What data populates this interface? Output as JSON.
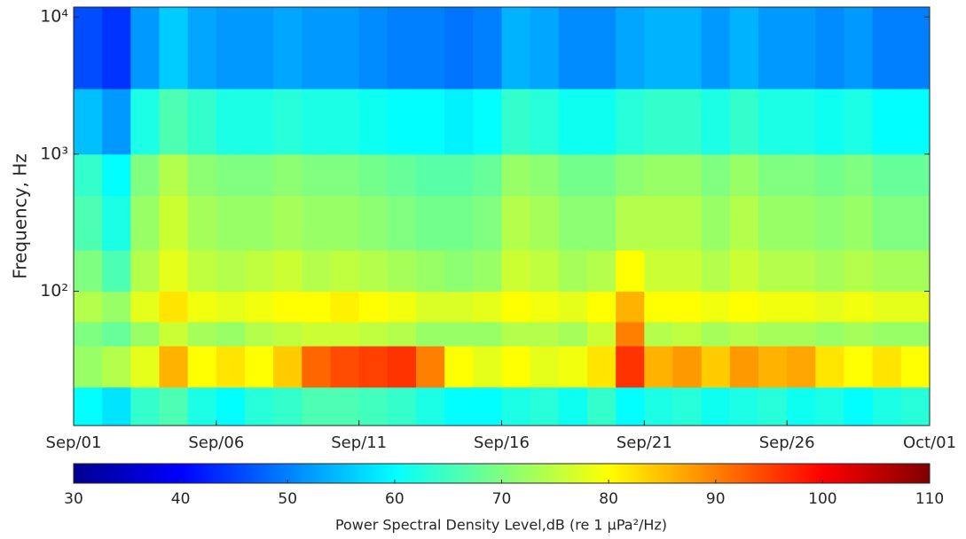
{
  "chart_data": {
    "type": "heatmap",
    "y_label": "Frequency, Hz",
    "colorbar_label": "Power Spectral Density Level,dB (re 1 μPa²/Hz)",
    "colormap": "jet",
    "y_log": true,
    "x": [
      0,
      1,
      2,
      3,
      4,
      5,
      6,
      7,
      8,
      9,
      10,
      11,
      12,
      13,
      14,
      15,
      16,
      17,
      18,
      19,
      20,
      21,
      22,
      23,
      24,
      25,
      26,
      27,
      28,
      29
    ],
    "xlim": [
      0,
      30
    ],
    "xticks": [
      {
        "value": 0,
        "label": "Sep/01"
      },
      {
        "value": 5,
        "label": "Sep/06"
      },
      {
        "value": 10,
        "label": "Sep/11"
      },
      {
        "value": 15,
        "label": "Sep/16"
      },
      {
        "value": 20,
        "label": "Sep/21"
      },
      {
        "value": 25,
        "label": "Sep/26"
      },
      {
        "value": 30,
        "label": "Oct/01"
      }
    ],
    "ybins": [
      10,
      20,
      40,
      60,
      100,
      200,
      500,
      1000,
      3000,
      12000
    ],
    "ylim": [
      10.5,
      11800
    ],
    "yticks": [
      {
        "value": 100,
        "label": "10²"
      },
      {
        "value": 1000,
        "label": "10³"
      },
      {
        "value": 10000,
        "label": "10⁴"
      }
    ],
    "clim": [
      30,
      110
    ],
    "cticks": [
      30,
      40,
      50,
      60,
      70,
      80,
      90,
      100,
      110
    ],
    "values": [
      [
        60,
        58,
        64,
        66,
        62,
        60,
        63,
        64,
        66,
        66,
        65,
        64,
        62,
        60,
        60,
        62,
        63,
        61,
        64,
        60,
        62,
        63,
        61,
        62,
        63,
        61,
        62,
        60,
        62,
        63
      ],
      [
        72,
        74,
        78,
        86,
        80,
        82,
        80,
        84,
        92,
        94,
        95,
        96,
        90,
        80,
        78,
        80,
        78,
        79,
        82,
        96,
        86,
        88,
        84,
        88,
        86,
        87,
        82,
        80,
        82,
        80
      ],
      [
        70,
        68,
        72,
        76,
        73,
        72,
        74,
        75,
        76,
        76,
        75,
        74,
        72,
        72,
        72,
        74,
        74,
        73,
        76,
        90,
        74,
        75,
        73,
        74,
        73,
        73,
        72,
        73,
        72,
        72
      ],
      [
        74,
        72,
        78,
        82,
        79,
        78,
        79,
        80,
        80,
        81,
        80,
        79,
        77,
        77,
        78,
        80,
        79,
        78,
        80,
        86,
        80,
        80,
        79,
        80,
        79,
        79,
        78,
        79,
        78,
        78
      ],
      [
        70,
        66,
        74,
        78,
        75,
        74,
        75,
        76,
        74,
        75,
        74,
        73,
        72,
        71,
        72,
        76,
        75,
        73,
        74,
        80,
        76,
        76,
        74,
        76,
        74,
        74,
        73,
        74,
        73,
        73
      ],
      [
        66,
        62,
        72,
        76,
        73,
        72,
        72,
        73,
        72,
        72,
        71,
        70,
        69,
        69,
        70,
        74,
        73,
        71,
        71,
        74,
        74,
        74,
        72,
        74,
        72,
        72,
        71,
        72,
        70,
        70
      ],
      [
        64,
        60,
        70,
        74,
        71,
        70,
        70,
        71,
        70,
        70,
        69,
        68,
        67,
        67,
        68,
        72,
        71,
        69,
        69,
        71,
        72,
        72,
        70,
        72,
        70,
        70,
        69,
        70,
        68,
        68
      ],
      [
        55,
        52,
        62,
        66,
        64,
        62,
        62,
        63,
        62,
        62,
        61,
        60,
        60,
        59,
        60,
        64,
        63,
        61,
        61,
        63,
        64,
        64,
        62,
        64,
        62,
        62,
        61,
        62,
        60,
        60
      ],
      [
        46,
        44,
        52,
        56,
        53,
        52,
        52,
        53,
        52,
        52,
        51,
        50,
        50,
        49,
        50,
        54,
        53,
        51,
        51,
        53,
        54,
        54,
        52,
        54,
        52,
        52,
        51,
        52,
        50,
        50
      ]
    ]
  }
}
